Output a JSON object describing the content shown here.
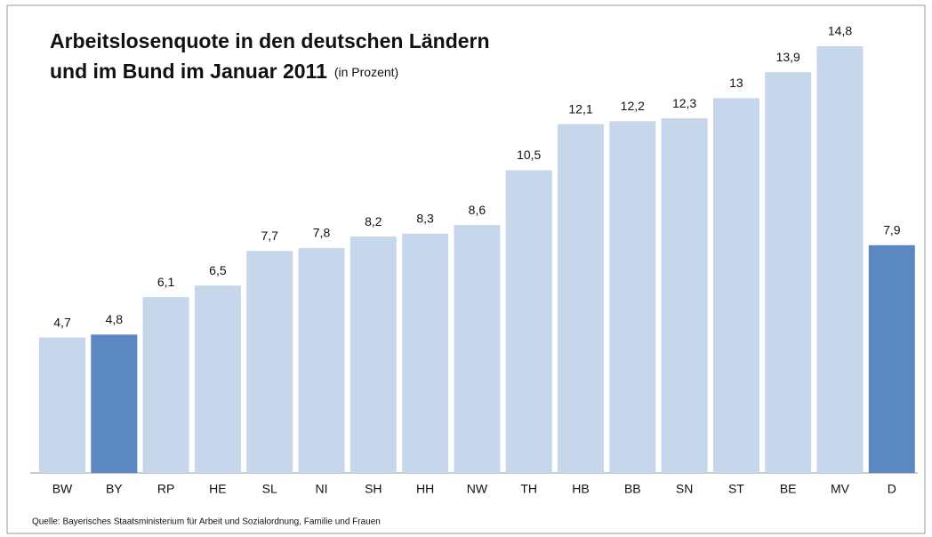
{
  "chart_data": {
    "type": "bar",
    "title_lines": [
      "Arbeitslosenquote in den deutschen Ländern",
      "und im Bund im Januar 2011"
    ],
    "subtitle": "(in Prozent)",
    "source": "Quelle: Bayerisches Staatsministerium für Arbeit und Sozialordnung, Familie und Frauen",
    "categories": [
      "BW",
      "BY",
      "RP",
      "HE",
      "SL",
      "NI",
      "SH",
      "HH",
      "NW",
      "TH",
      "HB",
      "BB",
      "SN",
      "ST",
      "BE",
      "MV",
      "D"
    ],
    "values": [
      4.7,
      4.8,
      6.1,
      6.5,
      7.7,
      7.8,
      8.2,
      8.3,
      8.6,
      10.5,
      12.1,
      12.2,
      12.3,
      13,
      13.9,
      14.8,
      7.9
    ],
    "value_labels": [
      "4,7",
      "4,8",
      "6,1",
      "6,5",
      "7,7",
      "7,8",
      "8,2",
      "8,3",
      "8,6",
      "10,5",
      "12,1",
      "12,2",
      "12,3",
      "13",
      "13,9",
      "14,8",
      "7,9"
    ],
    "colors": [
      "#c6d6eb",
      "#5b88c1",
      "#c6d6eb",
      "#c6d6eb",
      "#c6d6eb",
      "#c6d6eb",
      "#c6d6eb",
      "#c6d6eb",
      "#c6d6eb",
      "#c6d6eb",
      "#c6d6eb",
      "#c6d6eb",
      "#c6d6eb",
      "#c6d6eb",
      "#c6d6eb",
      "#c6d6eb",
      "#5b88c1"
    ]
  }
}
